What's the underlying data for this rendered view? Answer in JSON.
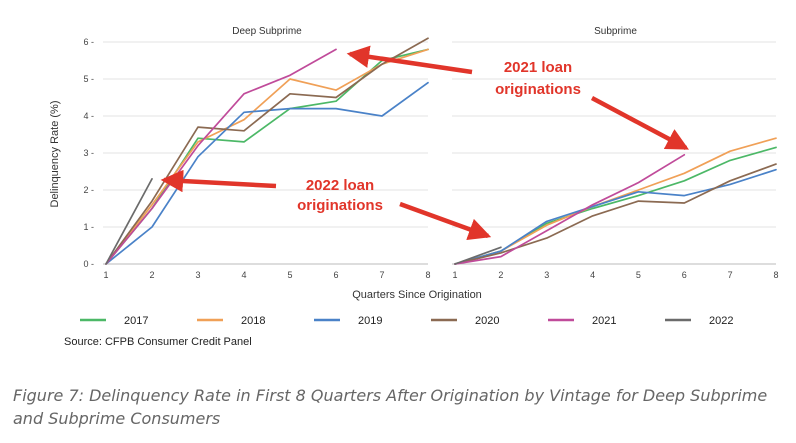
{
  "chart_data": {
    "type": "line",
    "ylabel": "Delinquency Rate (%)",
    "xlabel": "Quarters Since Origination",
    "x": [
      1,
      2,
      3,
      4,
      5,
      6,
      7,
      8
    ],
    "ylim": [
      0,
      6
    ],
    "yticks": [
      0,
      1,
      2,
      3,
      4,
      5,
      6
    ],
    "grid": true,
    "legend_position": "bottom",
    "source": "Source: CFPB Consumer Credit Panel",
    "panels": [
      {
        "title": "Deep Subprime",
        "series": [
          {
            "name": "2017",
            "color": "#4cb867",
            "values": [
              0.0,
              1.5,
              3.4,
              3.3,
              4.2,
              4.4,
              5.5,
              5.8
            ]
          },
          {
            "name": "2018",
            "color": "#f0a057",
            "values": [
              0.0,
              1.6,
              3.3,
              3.9,
              5.0,
              4.7,
              5.4,
              5.8
            ]
          },
          {
            "name": "2019",
            "color": "#4a82c8",
            "values": [
              0.0,
              1.0,
              2.9,
              4.1,
              4.2,
              4.2,
              4.0,
              4.9
            ]
          },
          {
            "name": "2020",
            "color": "#8b6a52",
            "values": [
              0.0,
              1.7,
              3.7,
              3.6,
              4.6,
              4.5,
              5.4,
              6.1
            ]
          },
          {
            "name": "2021",
            "color": "#c04b9a",
            "values": [
              0.0,
              1.5,
              3.2,
              4.6,
              5.1,
              5.8,
              null,
              null
            ]
          },
          {
            "name": "2022",
            "color": "#6b6b6b",
            "values": [
              0.0,
              2.3,
              null,
              null,
              null,
              null,
              null,
              null
            ]
          }
        ]
      },
      {
        "title": "Subprime",
        "series": [
          {
            "name": "2017",
            "color": "#4cb867",
            "values": [
              0.0,
              0.35,
              1.1,
              1.5,
              1.85,
              2.25,
              2.8,
              3.15
            ]
          },
          {
            "name": "2018",
            "color": "#f0a057",
            "values": [
              0.0,
              0.35,
              1.05,
              1.55,
              2.0,
              2.45,
              3.05,
              3.4
            ]
          },
          {
            "name": "2019",
            "color": "#4a82c8",
            "values": [
              0.0,
              0.35,
              1.15,
              1.55,
              1.95,
              1.85,
              2.15,
              2.55
            ]
          },
          {
            "name": "2020",
            "color": "#8b6a52",
            "values": [
              0.0,
              0.3,
              0.7,
              1.3,
              1.7,
              1.65,
              2.25,
              2.7
            ]
          },
          {
            "name": "2021",
            "color": "#c04b9a",
            "values": [
              0.0,
              0.2,
              0.9,
              1.6,
              2.2,
              2.95,
              null,
              null
            ]
          },
          {
            "name": "2022",
            "color": "#6b6b6b",
            "values": [
              0.0,
              0.45,
              null,
              null,
              null,
              null,
              null,
              null
            ]
          }
        ]
      }
    ],
    "annotations": [
      {
        "lines": [
          "2021 loan",
          "originations"
        ]
      },
      {
        "lines": [
          "2022 loan",
          "originations"
        ]
      }
    ]
  },
  "caption": "Figure 7: Delinquency Rate in First 8 Quarters After Origination by Vintage for Deep Subprime and Subprime Consumers"
}
